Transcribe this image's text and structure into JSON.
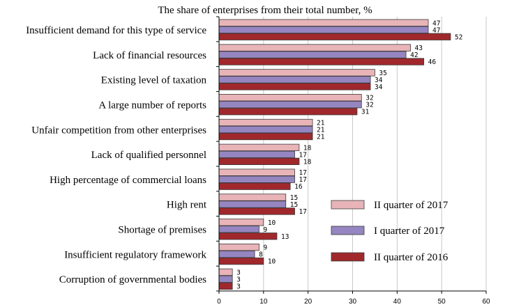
{
  "chart_data": {
    "type": "bar",
    "orientation": "horizontal",
    "title": "The share of enterprises from their total number, %",
    "categories": [
      "Insufficient demand for this type of service",
      "Lack of financial resources",
      "Existing level of taxation",
      "A large number of reports",
      "Unfair competition from other enterprises",
      "Lack of qualified personnel",
      "High percentage of commercial loans",
      "High rent",
      "Shortage of premises",
      "Insufficient regulatory framework",
      "Corruption of governmental bodies"
    ],
    "series": [
      {
        "name": "II quarter of 2017",
        "color": "#e8b4b8",
        "values": [
          47,
          43,
          35,
          32,
          21,
          18,
          17,
          15,
          10,
          9,
          3
        ]
      },
      {
        "name": "I quarter of 2017",
        "color": "#9585c0",
        "values": [
          47,
          42,
          34,
          32,
          21,
          17,
          17,
          15,
          9,
          8,
          3
        ]
      },
      {
        "name": "II quarter of 2016",
        "color": "#a0282c",
        "values": [
          52,
          46,
          34,
          31,
          21,
          18,
          16,
          17,
          13,
          10,
          3
        ]
      }
    ],
    "xlim": [
      0,
      60
    ],
    "xticks": [
      0,
      10,
      20,
      30,
      40,
      50,
      60
    ],
    "grid": "vertical",
    "legend_position": "right"
  }
}
